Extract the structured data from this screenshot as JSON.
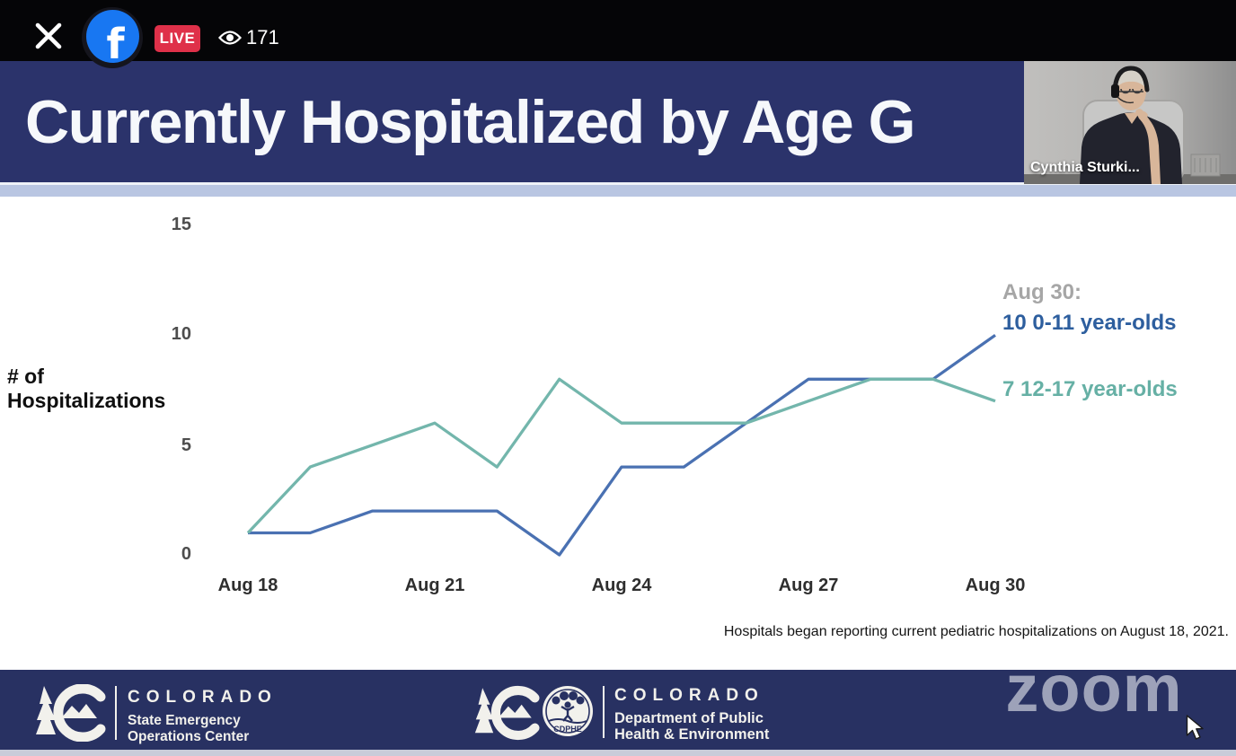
{
  "top_bar": {
    "live_label": "LIVE",
    "viewer_count": "171",
    "icons": {
      "close": "x-close",
      "facebook_f": "f",
      "viewers": "eye"
    }
  },
  "header": {
    "title": "Currently Hospitalized by Age G"
  },
  "webcam": {
    "participant_name": "Cynthia Sturki..."
  },
  "chart_data": {
    "type": "line",
    "x": [
      "Aug 18",
      "Aug 19",
      "Aug 20",
      "Aug 21",
      "Aug 22",
      "Aug 23",
      "Aug 24",
      "Aug 25",
      "Aug 26",
      "Aug 27",
      "Aug 28",
      "Aug 29",
      "Aug 30"
    ],
    "x_tick_labels": [
      "Aug 18",
      "Aug 21",
      "Aug 24",
      "Aug 27",
      "Aug 30"
    ],
    "yticks": [
      0,
      5,
      10,
      15
    ],
    "ylim": [
      0,
      16
    ],
    "ylabel": "# of Hospitalizations",
    "grid": false,
    "legend_position": "annotation-right",
    "series": [
      {
        "name": "0-11 year-olds",
        "color": "#4a71b2",
        "values": [
          1,
          1,
          2,
          2,
          2,
          0,
          4,
          4,
          6,
          8,
          8,
          8,
          10
        ]
      },
      {
        "name": "12-17 year-olds",
        "color": "#73b6ac",
        "values": [
          1,
          4,
          5,
          6,
          4,
          8,
          6,
          6,
          6,
          7,
          8,
          8,
          7
        ]
      }
    ],
    "annotations": {
      "date_label": "Aug 30:",
      "series1_label": "10 0-11 year-olds",
      "series2_label": "7 12-17 year-olds"
    },
    "footnote": "Hospitals began reporting current pediatric hospitalizations on August 18, 2021."
  },
  "footer": {
    "left_logo": {
      "brand": "COLORADO",
      "line1": "State Emergency",
      "line2": "Operations Center"
    },
    "center_logo": {
      "brand": "COLORADO",
      "line1": "Department of Public",
      "line2": "Health & Environment",
      "seal_text": "CDPHE"
    },
    "watermark": "zoom"
  },
  "colors": {
    "top_bar_bg": "#050507",
    "live_badge": "#df3049",
    "facebook_blue": "#1877f2",
    "header_bg": "#2b336b",
    "band": "#b9c6e2",
    "footer_bg": "#283162",
    "line_blue": "#4a71b2",
    "line_teal": "#73b6ac",
    "annotation_gray": "#a6a6a6"
  }
}
